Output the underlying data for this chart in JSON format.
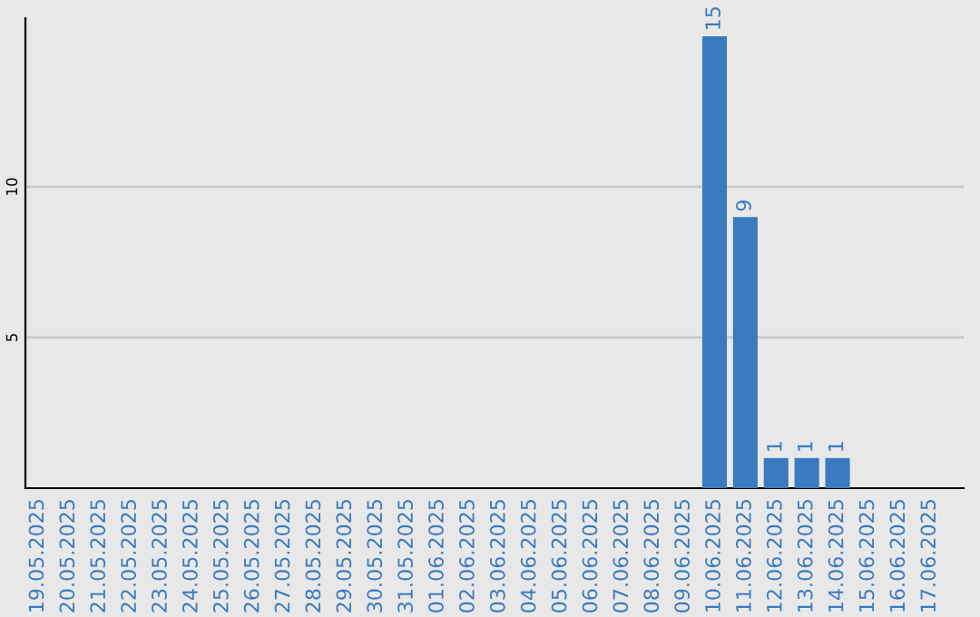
{
  "chart_data": {
    "type": "bar",
    "categories": [
      "19.05.2025",
      "20.05.2025",
      "21.05.2025",
      "22.05.2025",
      "23.05.2025",
      "24.05.2025",
      "25.05.2025",
      "26.05.2025",
      "27.05.2025",
      "28.05.2025",
      "29.05.2025",
      "30.05.2025",
      "31.05.2025",
      "01.06.2025",
      "02.06.2025",
      "03.06.2025",
      "04.06.2025",
      "05.06.2025",
      "06.06.2025",
      "07.06.2025",
      "08.06.2025",
      "09.06.2025",
      "10.06.2025",
      "11.06.2025",
      "12.06.2025",
      "13.06.2025",
      "14.06.2025",
      "15.06.2025",
      "16.06.2025",
      "17.06.2025"
    ],
    "values": [
      0,
      0,
      0,
      0,
      0,
      0,
      0,
      0,
      0,
      0,
      0,
      0,
      0,
      0,
      0,
      0,
      0,
      0,
      0,
      0,
      0,
      0,
      15,
      9,
      1,
      1,
      1,
      0,
      0,
      0
    ],
    "value_labels": [
      null,
      null,
      null,
      null,
      null,
      null,
      null,
      null,
      null,
      null,
      null,
      null,
      null,
      null,
      null,
      null,
      null,
      null,
      null,
      null,
      null,
      null,
      "15",
      "9",
      "1",
      "1",
      "1",
      null,
      null,
      null
    ],
    "color": "#3a7bbf",
    "ylim": [
      0,
      15.6
    ],
    "yticks": [
      5,
      10
    ],
    "grid": "y",
    "legend": false
  }
}
